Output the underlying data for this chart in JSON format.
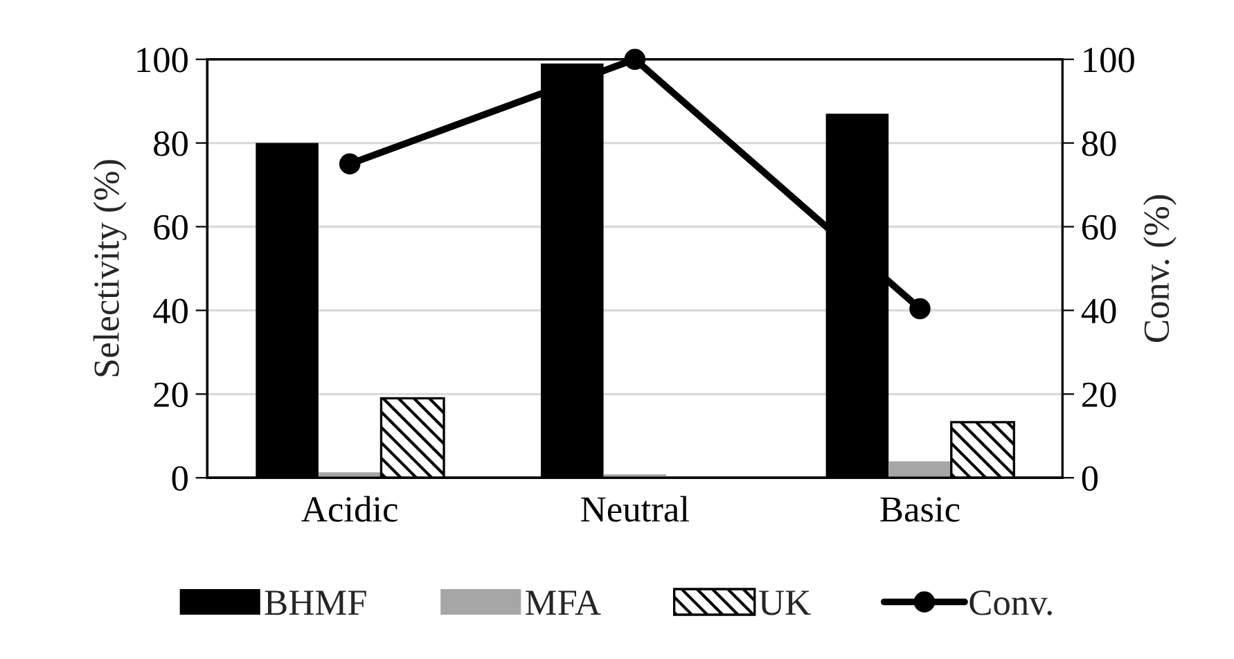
{
  "chart_data": {
    "type": "bar",
    "categories": [
      "Acidic",
      "Neutral",
      "Basic"
    ],
    "ylabel": "Selectivity (%)",
    "y2label": "Conv. (%)",
    "ylim": [
      0,
      100
    ],
    "yticks": [
      0,
      20,
      40,
      60,
      80,
      100
    ],
    "y2lim": [
      0,
      100
    ],
    "y2ticks": [
      0,
      20,
      40,
      60,
      80,
      100
    ],
    "grid": "y",
    "legend": "bottom",
    "series": [
      {
        "name": "BHMF",
        "color": "#000000",
        "values": [
          80,
          99,
          87
        ]
      },
      {
        "name": "MFA",
        "color": "#a6a6a6",
        "values": [
          1.3,
          0.8,
          3.9
        ]
      },
      {
        "name": "UK",
        "color": "#000000",
        "values": [
          19,
          null,
          13.3
        ]
      },
      {
        "name": "Conv.",
        "type": "line",
        "axis": "y2",
        "color": "#000000",
        "marker": "circle",
        "line_style": "solid",
        "values": [
          75,
          100,
          40.4
        ]
      }
    ]
  }
}
